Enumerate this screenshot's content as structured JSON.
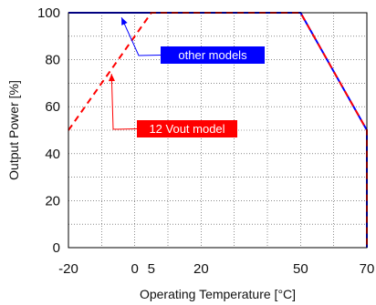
{
  "chart_data": {
    "type": "line",
    "xlabel": "Operating Temperature [°C]",
    "ylabel": "Output Power [%]",
    "xlim": [
      -20,
      70
    ],
    "ylim": [
      0,
      100
    ],
    "x_ticks": [
      -20,
      0,
      5,
      20,
      50,
      70
    ],
    "x_tick_labels": [
      "-20",
      "0",
      "5",
      "20",
      "50",
      "70"
    ],
    "y_ticks": [
      0,
      20,
      40,
      60,
      80,
      100
    ],
    "y_tick_labels": [
      "0",
      "20",
      "40",
      "60",
      "80",
      "100"
    ],
    "grid": true,
    "grid_style": "dotted",
    "series": [
      {
        "name": "other models",
        "color": "#0000ff",
        "style": "solid",
        "x": [
          -20,
          50,
          70,
          70
        ],
        "y": [
          100,
          100,
          50,
          0
        ]
      },
      {
        "name": "12 Vout model",
        "color": "#ff0000",
        "style": "dashed",
        "x": [
          -20,
          5,
          50,
          70,
          70
        ],
        "y": [
          50,
          100,
          100,
          50,
          0
        ]
      }
    ],
    "annotations": [
      {
        "text": "other models",
        "background": "#0000ff",
        "points_to": [
          -4,
          98
        ]
      },
      {
        "text": "12 Vout model",
        "background": "#ff0000",
        "points_to": [
          -7,
          74
        ]
      }
    ]
  }
}
